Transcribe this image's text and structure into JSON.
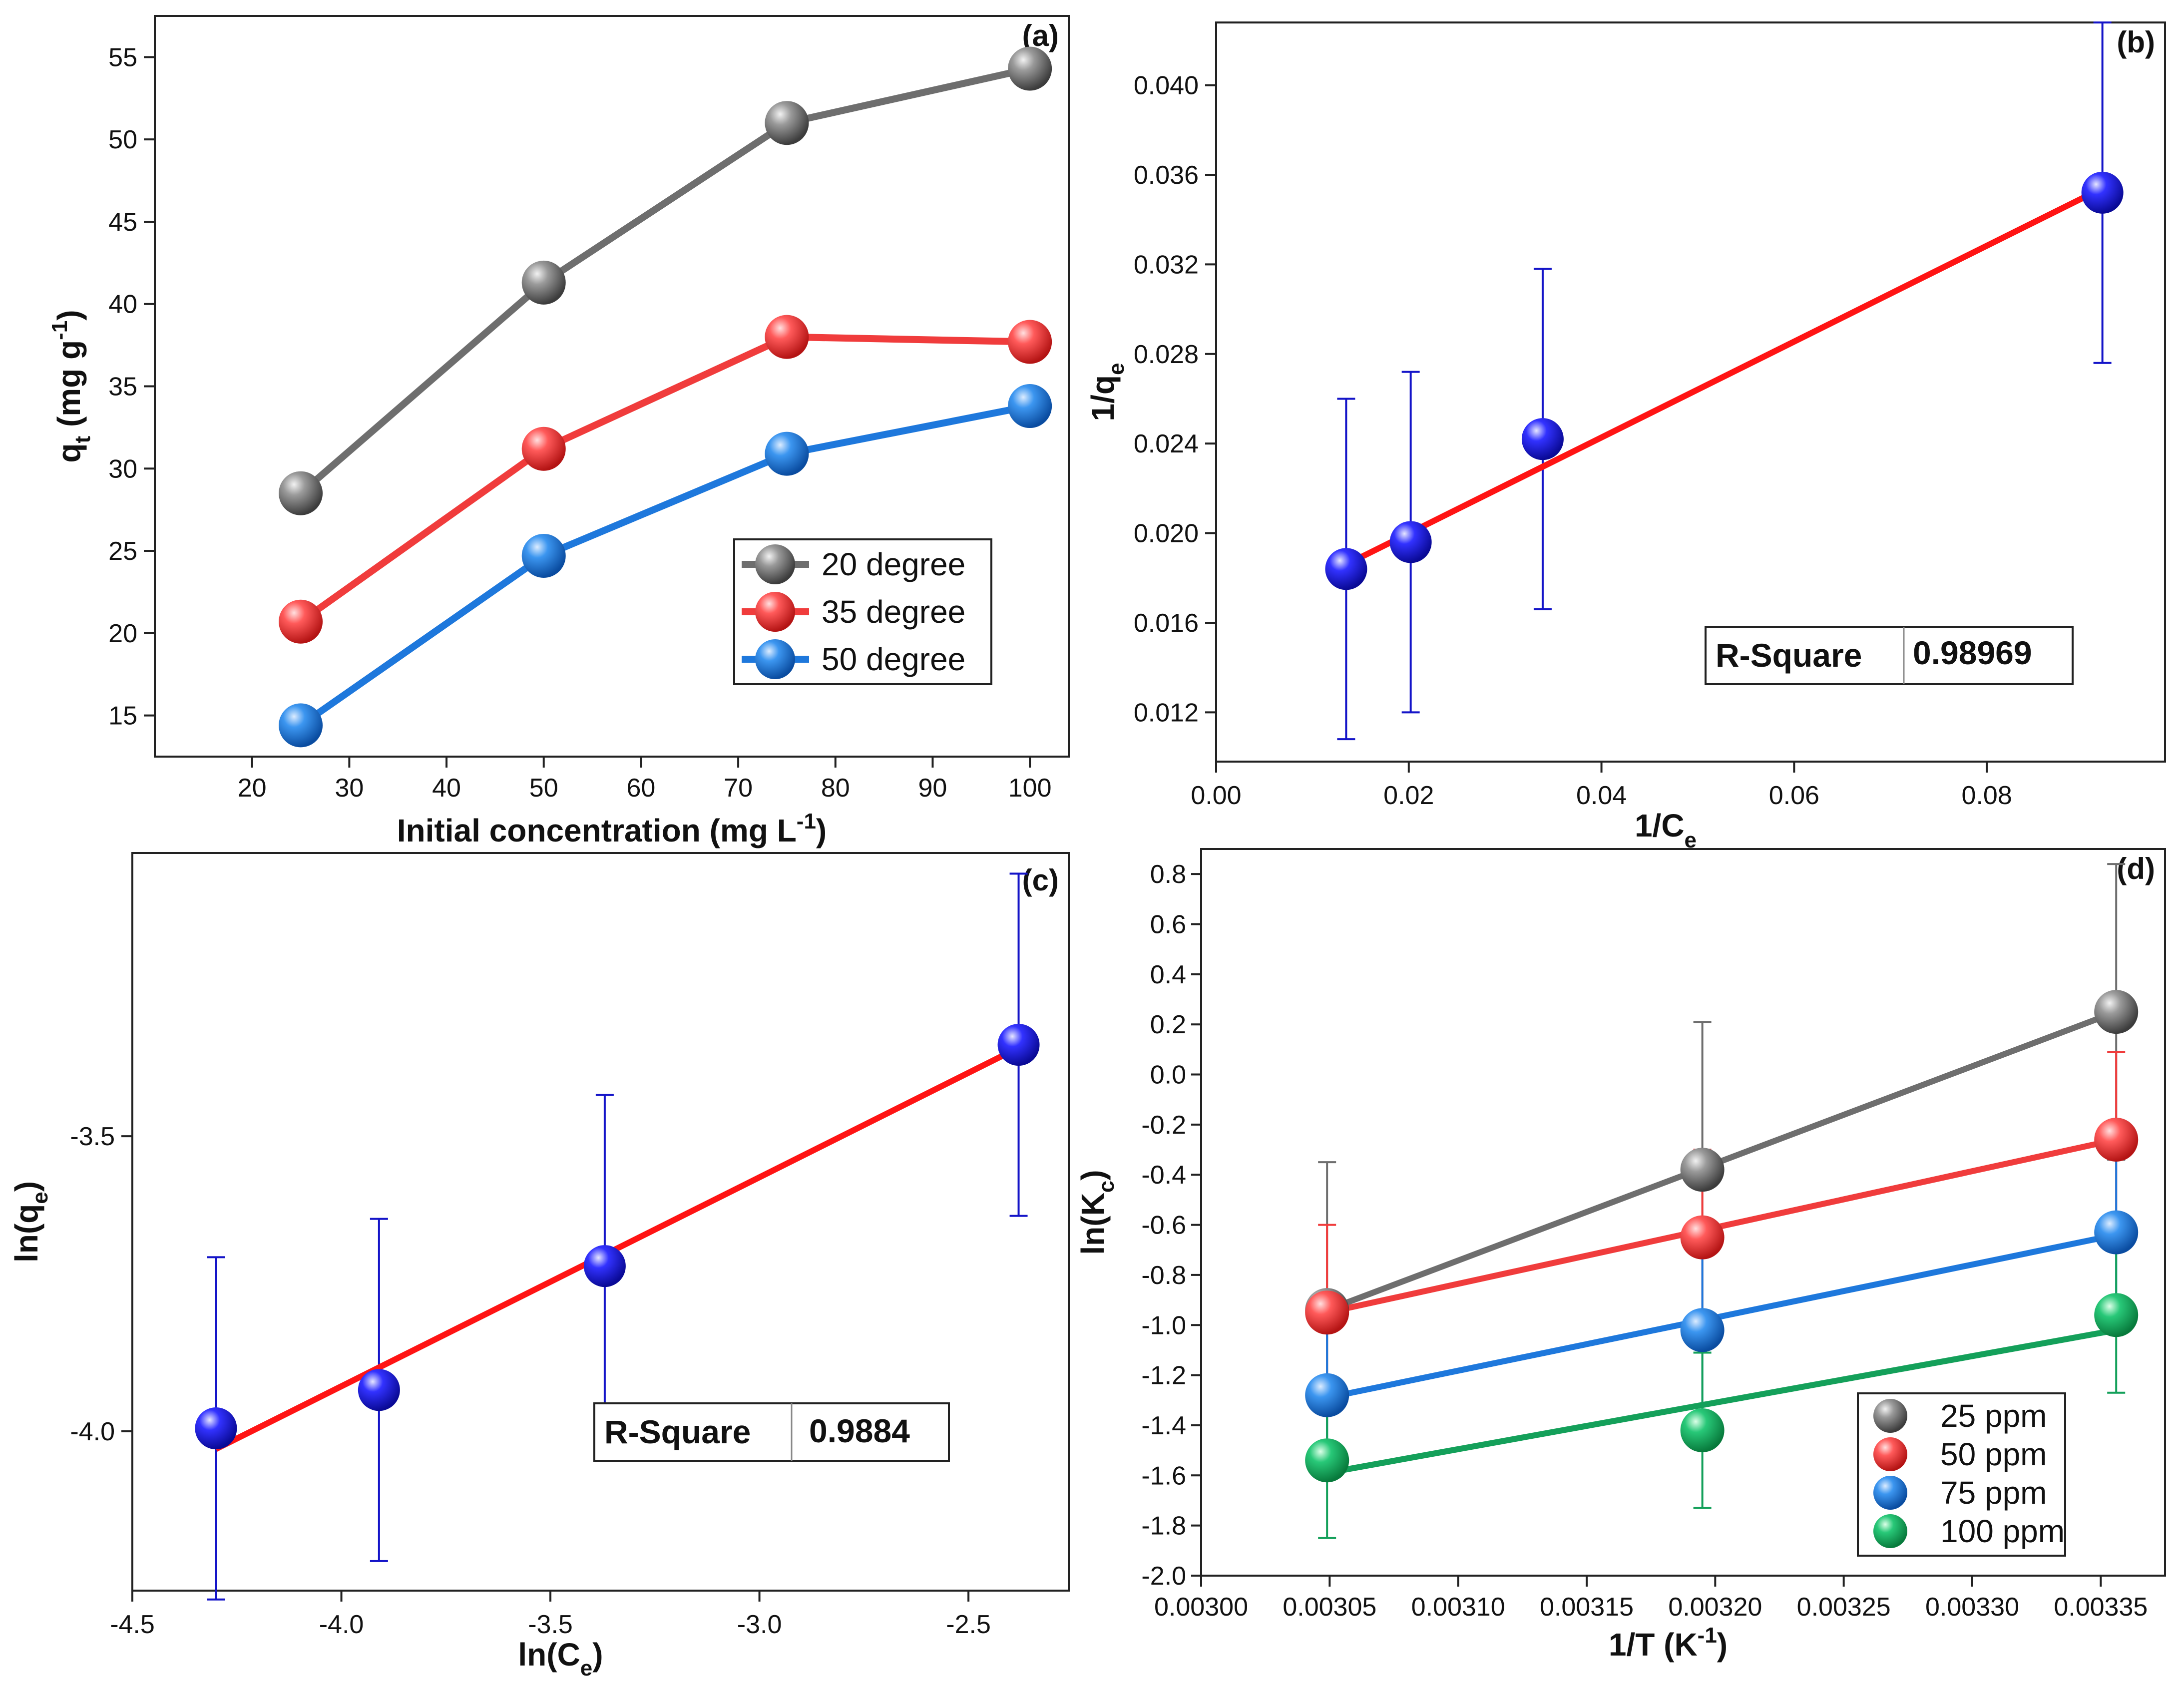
{
  "chart_data": [
    {
      "id": "a",
      "type": "line",
      "panel_label": "(a)",
      "xlabel": "Initial concentration (mg L",
      "xlabel_sup": "-1",
      "xlabel_close": ")",
      "ylabel_main": "q",
      "ylabel_sub": "t",
      "ylabel_rest": " (mg g",
      "ylabel_sup": "-1",
      "ylabel_close": ")",
      "xlim": [
        10,
        104
      ],
      "ylim": [
        12.5,
        57.5
      ],
      "xticks": [
        20,
        30,
        40,
        50,
        60,
        70,
        80,
        90,
        100
      ],
      "yticks": [
        15,
        20,
        25,
        30,
        35,
        40,
        45,
        50,
        55
      ],
      "x": [
        25,
        50,
        75,
        100
      ],
      "series": [
        {
          "name": "20 degree",
          "color": "#6e6e6e",
          "values": [
            28.5,
            41.3,
            51.0,
            54.3
          ]
        },
        {
          "name": "35 degree",
          "color": "#f03c3c",
          "values": [
            20.7,
            31.2,
            38.0,
            37.7
          ]
        },
        {
          "name": "50 degree",
          "color": "#1e78dc",
          "values": [
            14.4,
            24.7,
            30.9,
            33.8
          ]
        }
      ],
      "legend": "center-right"
    },
    {
      "id": "b",
      "type": "scatter",
      "panel_label": "(b)",
      "xlabel": "1/C",
      "xlabel_sub": "e",
      "ylabel": "1/q",
      "ylabel_sub": "e",
      "xlim": [
        0.0,
        0.0985
      ],
      "ylim": [
        0.0098,
        0.0428
      ],
      "xticks": [
        "0.00",
        "0.02",
        "0.04",
        "0.06",
        "0.08"
      ],
      "yticks": [
        "0.012",
        "0.016",
        "0.020",
        "0.024",
        "0.028",
        "0.032",
        "0.036",
        "0.040"
      ],
      "points": [
        {
          "x": 0.0135,
          "y": 0.0184,
          "err": 0.0076
        },
        {
          "x": 0.0202,
          "y": 0.0196,
          "err": 0.0076
        },
        {
          "x": 0.0339,
          "y": 0.0242,
          "err": 0.0076
        },
        {
          "x": 0.092,
          "y": 0.0352,
          "err": 0.0076
        }
      ],
      "point_color": "#1414c8",
      "error_color": "#1414c8",
      "fit": {
        "x": [
          0.0135,
          0.092
        ],
        "y": [
          0.0186,
          0.0354
        ],
        "color": "#ff1414"
      },
      "r_square_label": "R-Square",
      "r_square_value": "0.98969"
    },
    {
      "id": "c",
      "type": "scatter",
      "panel_label": "(c)",
      "xlabel": "ln(C",
      "xlabel_sub": "e",
      "xlabel_close": ")",
      "ylabel": "ln(q",
      "ylabel_sub": "e",
      "ylabel_close": ")",
      "xlim": [
        -4.5,
        -2.26
      ],
      "ylim": [
        -4.27,
        -3.02
      ],
      "xticks": [
        "-4.5",
        "-4.0",
        "-3.5",
        "-3.0",
        "-2.5"
      ],
      "yticks": [
        "-3.5",
        "-4.0"
      ],
      "ytick_values": [
        -3.5,
        -4.0
      ],
      "points": [
        {
          "x": -4.3,
          "y": -3.995,
          "err": 0.29
        },
        {
          "x": -3.91,
          "y": -3.93,
          "err": 0.29
        },
        {
          "x": -3.37,
          "y": -3.72,
          "err": 0.29
        },
        {
          "x": -2.38,
          "y": -3.345,
          "err": 0.29
        }
      ],
      "point_color": "#1414c8",
      "error_color": "#1414c8",
      "fit": {
        "x": [
          -4.3,
          -2.38
        ],
        "y": [
          -4.03,
          -3.35
        ],
        "color": "#ff1414"
      },
      "r_square_label": "R-Square",
      "r_square_value": "0.9884"
    },
    {
      "id": "d",
      "type": "line",
      "panel_label": "(d)",
      "xlabel": "1/T (K",
      "xlabel_sup": "-1",
      "xlabel_close": ")",
      "ylabel": "ln(K",
      "ylabel_sub": "c",
      "ylabel_close": ")",
      "xlim": [
        0.003,
        0.003375
      ],
      "ylim": [
        -2.0,
        0.9
      ],
      "xticks": [
        "0.00300",
        "0.00305",
        "0.00310",
        "0.00315",
        "0.00320",
        "0.00325",
        "0.00330",
        "0.00335"
      ],
      "yticks": [
        "0.8",
        "0.6",
        "0.4",
        "0.2",
        "0.0",
        "-0.2",
        "-0.4",
        "-0.6",
        "-0.8",
        "-1.0",
        "-1.2",
        "-1.4",
        "-1.6",
        "-1.8",
        "-2.0"
      ],
      "x": [
        0.003049,
        0.003195,
        0.003356
      ],
      "series": [
        {
          "name": "25 ppm",
          "color": "#6e6e6e",
          "values": [
            -0.94,
            -0.38,
            0.25
          ],
          "err": [
            0.59,
            0.59,
            0.59
          ],
          "fit": [
            -0.94,
            0.25
          ]
        },
        {
          "name": "50 ppm",
          "color": "#f03c3c",
          "values": [
            -0.95,
            -0.65,
            -0.26
          ],
          "err": [
            0.35,
            0.35,
            0.35
          ],
          "fit": [
            -0.95,
            -0.26
          ]
        },
        {
          "name": "75 ppm",
          "color": "#1e78dc",
          "values": [
            -1.28,
            -1.02,
            -0.63
          ],
          "err": [
            0.33,
            0.33,
            0.33
          ],
          "fit": [
            -1.29,
            -0.64
          ]
        },
        {
          "name": "100 ppm",
          "color": "#14a05a",
          "values": [
            -1.54,
            -1.42,
            -0.96
          ],
          "err": [
            0.31,
            0.31,
            0.31
          ],
          "fit": [
            -1.59,
            -1.02
          ]
        }
      ],
      "legend": "bottom-right"
    }
  ]
}
